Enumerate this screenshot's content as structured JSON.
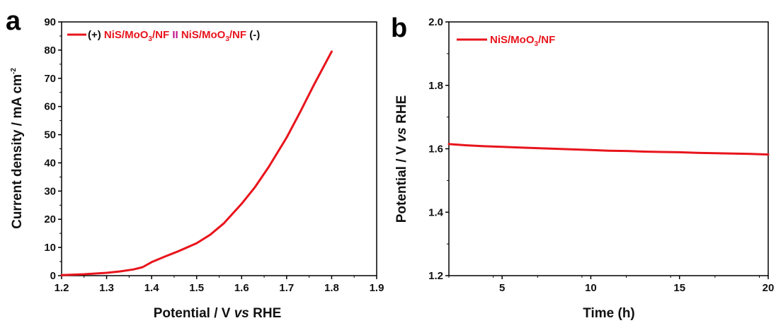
{
  "panels": {
    "a": {
      "panel_label": "a",
      "xlabel_parts": [
        "Potential / V ",
        "vs",
        " RHE"
      ],
      "ylabel": "Current density / mA cm",
      "ylabel_sup": "-2",
      "legend": {
        "prefix": "(+) ",
        "name1": "NiS/MoO",
        "sub1": "3",
        "suffix1": "/NF",
        "separator": " II ",
        "name2": "NiS/MoO",
        "sub2": "3",
        "suffix2": "/NF",
        "tail": " (-)"
      },
      "colors": {
        "line": "#e8141c",
        "separator": "#c0158c"
      }
    },
    "b": {
      "panel_label": "b",
      "xlabel": "Time (h)",
      "ylabel_parts": [
        "Potential / V ",
        "vs",
        " RHE"
      ],
      "legend": {
        "name": "NiS/MoO",
        "sub": "3",
        "suffix": "/NF"
      },
      "colors": {
        "line": "#e8141c"
      }
    }
  },
  "chart_data": [
    {
      "type": "line",
      "xlim": [
        1.2,
        1.9
      ],
      "ylim": [
        0,
        90
      ],
      "xticks": [
        "1.2",
        "1.3",
        "1.4",
        "1.5",
        "1.6",
        "1.7",
        "1.8",
        "1.9"
      ],
      "yticks": [
        "0",
        "10",
        "20",
        "30",
        "40",
        "50",
        "60",
        "70",
        "80",
        "90"
      ],
      "legend_position": "top-left",
      "series": [
        {
          "x": [
            1.2,
            1.25,
            1.3,
            1.33,
            1.36,
            1.38,
            1.4,
            1.43,
            1.46,
            1.5,
            1.53,
            1.56,
            1.6,
            1.63,
            1.66,
            1.7,
            1.73,
            1.76,
            1.8
          ],
          "y": [
            0.2,
            0.5,
            1.0,
            1.5,
            2.2,
            3.0,
            4.8,
            6.8,
            8.7,
            11.5,
            14.5,
            18.5,
            25.5,
            31.5,
            38.5,
            49.0,
            58.0,
            67.5,
            79.5
          ]
        }
      ]
    },
    {
      "type": "line",
      "xlim": [
        2,
        20
      ],
      "ylim": [
        1.2,
        2.0
      ],
      "xticks": [
        "5",
        "10",
        "15",
        "20"
      ],
      "yticks": [
        "1.2",
        "1.4",
        "1.6",
        "1.8",
        "2.0"
      ],
      "legend_position": "top-left",
      "series": [
        {
          "name": "NiS/MoO3/NF",
          "x": [
            2.0,
            2.5,
            3,
            4,
            5,
            6,
            7,
            8,
            9,
            10,
            11,
            12,
            13,
            14,
            15,
            16,
            17,
            18,
            19,
            20
          ],
          "y": [
            1.615,
            1.613,
            1.611,
            1.608,
            1.606,
            1.604,
            1.602,
            1.6,
            1.598,
            1.596,
            1.594,
            1.593,
            1.591,
            1.59,
            1.589,
            1.587,
            1.586,
            1.585,
            1.584,
            1.582
          ]
        }
      ]
    }
  ]
}
